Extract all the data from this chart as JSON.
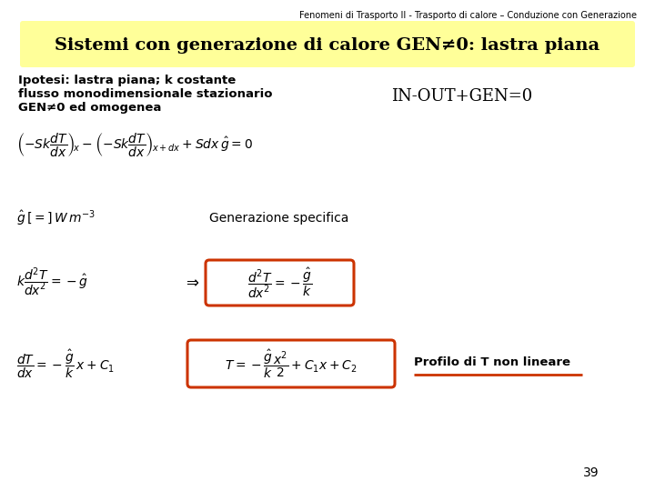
{
  "header_text": "Fenomeni di Trasporto II - Trasporto di calore – Conduzione con Generazione",
  "title": "Sistemi con generazione di calore GEN≠0: lastra piana",
  "title_bg": "#FFFF99",
  "title_color": "#000000",
  "bg_color": "#FFFFFF",
  "bold_lines": [
    "Ipotesi: lastra piana; k costante",
    "flusso monodimensionale stazionario",
    "GEN≠0 ed omogenea"
  ],
  "in_out_gen": "IN-OUT+GEN=0",
  "gen_specifica": "Generazione specifica",
  "profilo": "Profilo di T non lineare",
  "page_number": "39",
  "box_color": "#CC3300",
  "header_fontsize": 7,
  "title_fontsize": 14,
  "bold_fontsize": 9.5,
  "in_out_fontsize": 13,
  "eq_fontsize": 10,
  "gen_spec_fontsize": 10,
  "profilo_fontsize": 9.5,
  "page_fontsize": 10
}
